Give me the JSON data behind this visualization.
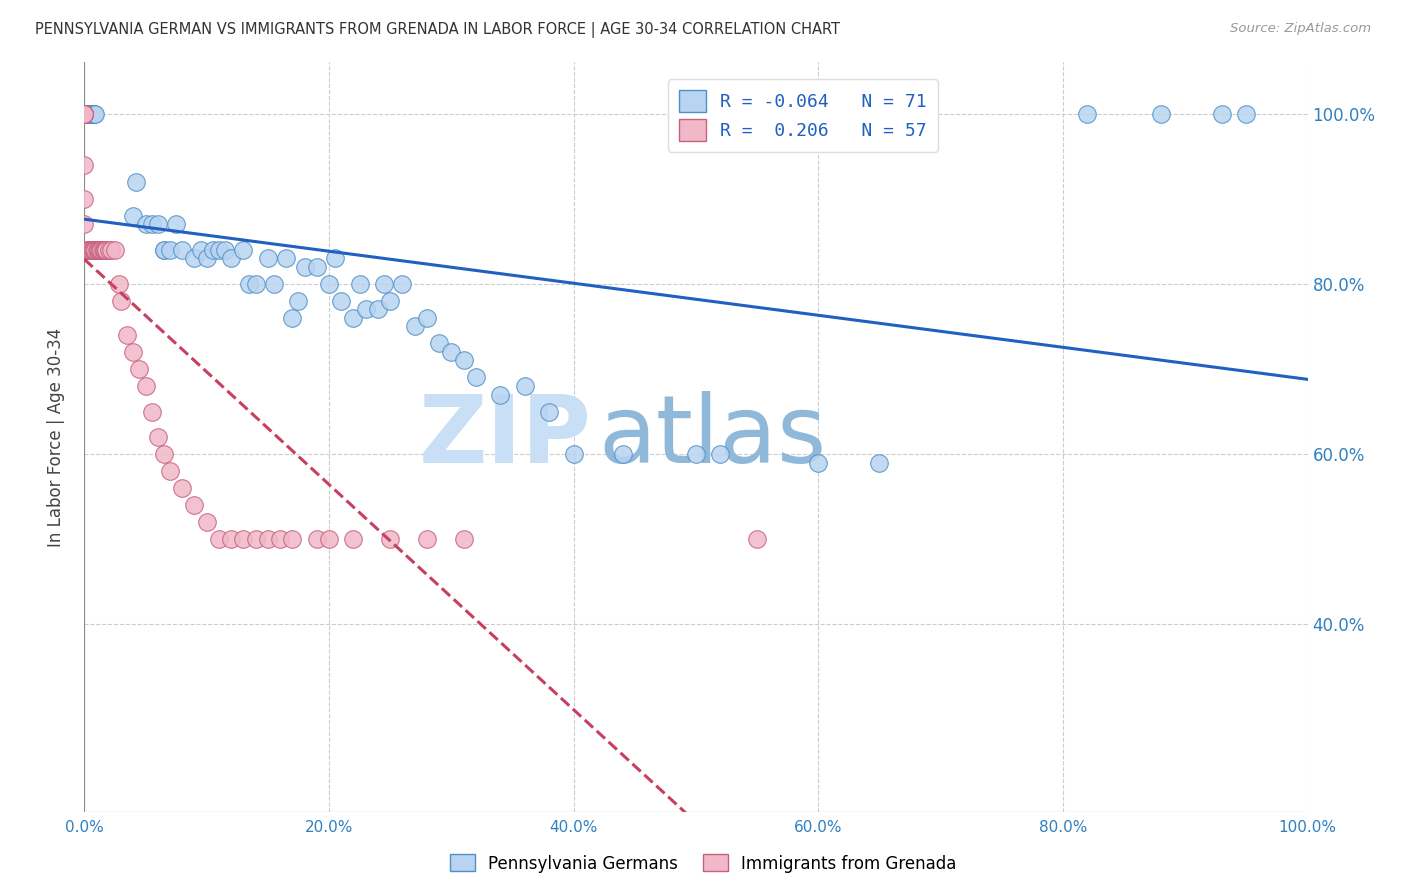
{
  "title": "PENNSYLVANIA GERMAN VS IMMIGRANTS FROM GRENADA IN LABOR FORCE | AGE 30-34 CORRELATION CHART",
  "source": "Source: ZipAtlas.com",
  "ylabel": "In Labor Force | Age 30-34",
  "xlim": [
    0.0,
    1.0
  ],
  "ylim": [
    0.18,
    1.06
  ],
  "blue_R": -0.064,
  "blue_N": 71,
  "pink_R": 0.206,
  "pink_N": 57,
  "blue_label": "Pennsylvania Germans",
  "pink_label": "Immigrants from Grenada",
  "blue_color": "#b8d4f0",
  "blue_edge": "#5090c8",
  "pink_color": "#f0b8c8",
  "pink_edge": "#c86080",
  "trendline_blue_color": "#2060c0",
  "trendline_pink_color": "#c84060",
  "trendline_pink_dash": "dashed",
  "blue_x": [
    0.002,
    0.002,
    0.003,
    0.003,
    0.003,
    0.004,
    0.004,
    0.005,
    0.005,
    0.006,
    0.007,
    0.007,
    0.008,
    0.008,
    0.009,
    0.04,
    0.042,
    0.05,
    0.055,
    0.06,
    0.065,
    0.065,
    0.07,
    0.075,
    0.08,
    0.09,
    0.095,
    0.1,
    0.105,
    0.11,
    0.115,
    0.12,
    0.13,
    0.135,
    0.14,
    0.15,
    0.155,
    0.165,
    0.17,
    0.175,
    0.18,
    0.19,
    0.2,
    0.205,
    0.21,
    0.22,
    0.225,
    0.23,
    0.24,
    0.245,
    0.25,
    0.26,
    0.27,
    0.28,
    0.29,
    0.3,
    0.31,
    0.32,
    0.34,
    0.36,
    0.38,
    0.4,
    0.44,
    0.5,
    0.52,
    0.6,
    0.65,
    0.82,
    0.88,
    0.93,
    0.95
  ],
  "blue_y": [
    1.0,
    1.0,
    1.0,
    1.0,
    1.0,
    1.0,
    1.0,
    1.0,
    1.0,
    1.0,
    1.0,
    1.0,
    1.0,
    1.0,
    1.0,
    0.88,
    0.92,
    0.87,
    0.87,
    0.87,
    0.84,
    0.84,
    0.84,
    0.87,
    0.84,
    0.83,
    0.84,
    0.83,
    0.84,
    0.84,
    0.84,
    0.83,
    0.84,
    0.8,
    0.8,
    0.83,
    0.8,
    0.83,
    0.76,
    0.78,
    0.82,
    0.82,
    0.8,
    0.83,
    0.78,
    0.76,
    0.8,
    0.77,
    0.77,
    0.8,
    0.78,
    0.8,
    0.75,
    0.76,
    0.73,
    0.72,
    0.71,
    0.69,
    0.67,
    0.68,
    0.65,
    0.6,
    0.6,
    0.6,
    0.6,
    0.59,
    0.59,
    1.0,
    1.0,
    1.0,
    1.0
  ],
  "pink_x": [
    0.0,
    0.0,
    0.0,
    0.0,
    0.0,
    0.0,
    0.0,
    0.0,
    0.0,
    0.0,
    0.002,
    0.003,
    0.004,
    0.005,
    0.006,
    0.007,
    0.008,
    0.009,
    0.01,
    0.011,
    0.012,
    0.013,
    0.014,
    0.015,
    0.016,
    0.017,
    0.018,
    0.02,
    0.022,
    0.025,
    0.028,
    0.03,
    0.035,
    0.04,
    0.045,
    0.05,
    0.055,
    0.06,
    0.065,
    0.07,
    0.08,
    0.09,
    0.1,
    0.11,
    0.12,
    0.13,
    0.14,
    0.15,
    0.16,
    0.17,
    0.19,
    0.2,
    0.22,
    0.25,
    0.28,
    0.31,
    0.55
  ],
  "pink_y": [
    1.0,
    1.0,
    1.0,
    1.0,
    1.0,
    1.0,
    1.0,
    0.94,
    0.9,
    0.87,
    0.84,
    0.84,
    0.84,
    0.84,
    0.84,
    0.84,
    0.84,
    0.84,
    0.84,
    0.84,
    0.84,
    0.84,
    0.84,
    0.84,
    0.84,
    0.84,
    0.84,
    0.84,
    0.84,
    0.84,
    0.8,
    0.78,
    0.74,
    0.72,
    0.7,
    0.68,
    0.65,
    0.62,
    0.6,
    0.58,
    0.56,
    0.54,
    0.52,
    0.5,
    0.5,
    0.5,
    0.5,
    0.5,
    0.5,
    0.5,
    0.5,
    0.5,
    0.5,
    0.5,
    0.5,
    0.5,
    0.5
  ],
  "xtick_labels": [
    "0.0%",
    "20.0%",
    "40.0%",
    "60.0%",
    "80.0%",
    "100.0%"
  ],
  "xtick_vals": [
    0.0,
    0.2,
    0.4,
    0.6,
    0.8,
    1.0
  ],
  "ytick_labels": [
    "40.0%",
    "60.0%",
    "80.0%",
    "100.0%"
  ],
  "ytick_vals": [
    0.4,
    0.6,
    0.8,
    1.0
  ],
  "grid_color": "#cccccc",
  "watermark_zip": "ZIP",
  "watermark_atlas": "atlas",
  "watermark_color_zip": "#c8dff5",
  "watermark_color_atlas": "#90b8d8",
  "background_color": "#ffffff"
}
